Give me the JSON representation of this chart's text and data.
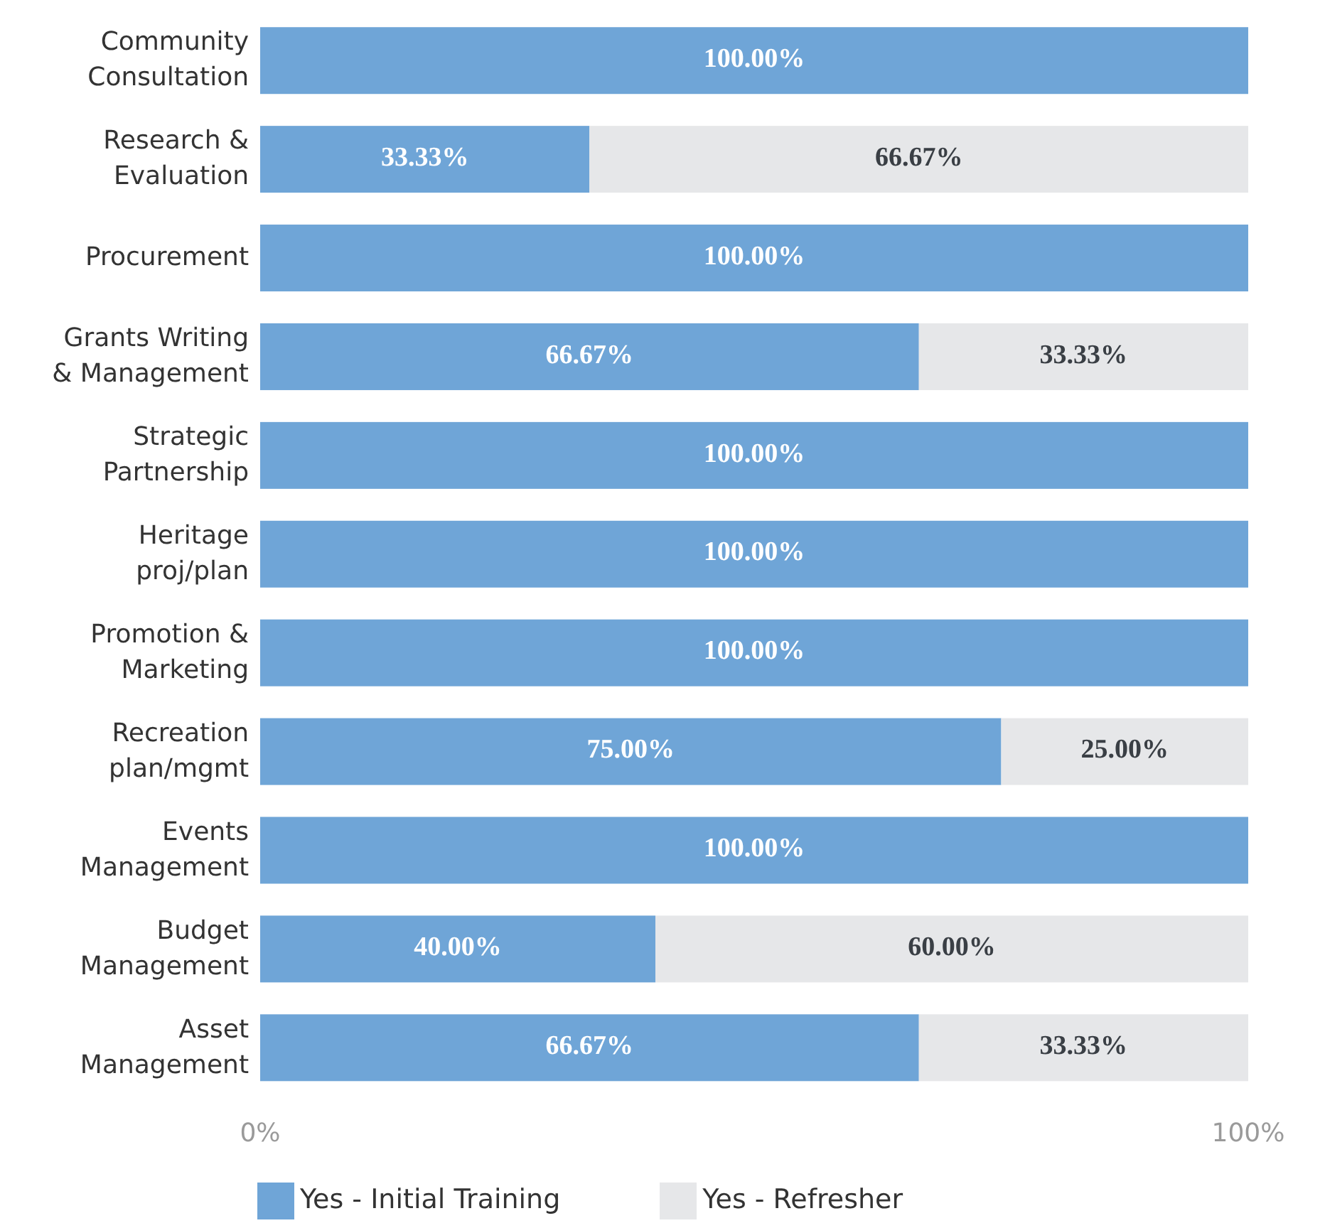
{
  "chart_data": {
    "type": "bar",
    "orientation": "horizontal",
    "stacked": true,
    "categories": [
      "Community Consultation",
      "Research & Evaluation",
      "Procurement",
      "Grants Writing & Management",
      "Strategic Partnership",
      "Heritage proj/plan",
      "Promotion & Marketing",
      "Recreation plan/mgmt",
      "Events Management",
      "Budget Management",
      "Asset Management"
    ],
    "series": [
      {
        "name": "Yes - Initial Training",
        "color": "#6fa5d7",
        "values": [
          100,
          33.33,
          100,
          66.67,
          100,
          100,
          100,
          75,
          100,
          40,
          66.67
        ],
        "value_labels": [
          "100.00%",
          "33.33%",
          "100.00%",
          "66.67%",
          "100.00%",
          "100.00%",
          "100.00%",
          "75.00%",
          "100.00%",
          "40.00%",
          "66.67%"
        ]
      },
      {
        "name": "Yes - Refresher",
        "color": "#e6e7e9",
        "values": [
          null,
          66.67,
          null,
          33.33,
          null,
          null,
          null,
          25,
          null,
          60,
          33.33
        ],
        "value_labels": [
          null,
          "66.67%",
          null,
          "33.33%",
          null,
          null,
          null,
          "25.00%",
          null,
          "60.00%",
          "33.33%"
        ]
      }
    ],
    "xlim": [
      0,
      100
    ],
    "xticks": [
      {
        "value": 0,
        "label": "0%"
      },
      {
        "value": 100,
        "label": "100%"
      }
    ],
    "grid": false,
    "legend": "bottom"
  }
}
